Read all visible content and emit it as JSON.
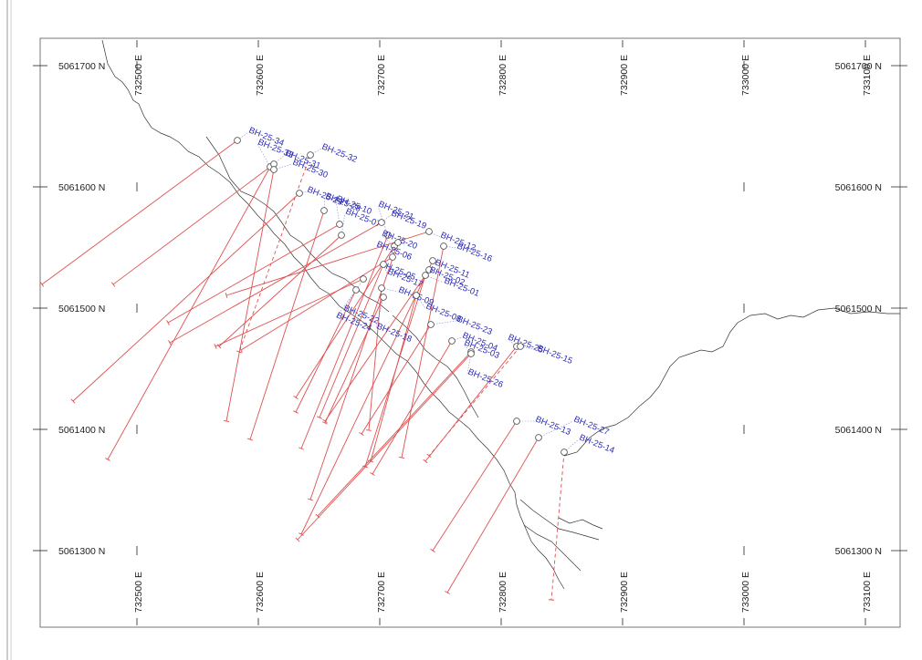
{
  "map": {
    "easting_labels": [
      "732500 E",
      "732600 E",
      "732700 E",
      "732800 E",
      "732900 E",
      "733000 E",
      "733100 E"
    ],
    "northing_labels": [
      "5061700 N",
      "5061600 N",
      "5061500 N",
      "5061400 N",
      "5061300 N"
    ],
    "colors": {
      "trace": "#e05050",
      "label": "#2a2ab8",
      "topo": "#333333"
    },
    "boreholes": [
      {
        "id": "BH-25-34",
        "label": "BH-25-34",
        "dashed": false
      },
      {
        "id": "BH-25-33",
        "label": "BH-25-33",
        "dashed": false
      },
      {
        "id": "BH-25-31",
        "label": "BH-25-31",
        "dashed": false
      },
      {
        "id": "BH-25-30",
        "label": "BH-25-30",
        "dashed": false
      },
      {
        "id": "BH-25-32",
        "label": "BH-25-32",
        "dashed": true
      },
      {
        "id": "BH-25-29",
        "label": "BH-25-29",
        "dashed": false
      },
      {
        "id": "BH-25-28",
        "label": "BH-25-28",
        "dashed": false
      },
      {
        "id": "BH-25-10",
        "label": "BH-25-10",
        "dashed": false
      },
      {
        "id": "BH-25-07",
        "label": "BH-25-07",
        "dashed": false
      },
      {
        "id": "BH-25-19",
        "label": "BH-25-19",
        "dashed": false
      },
      {
        "id": "BH-25-21",
        "label": "BH-25-21",
        "dashed": false
      },
      {
        "id": "BH-25-20",
        "label": "BH-25-20",
        "dashed": false
      },
      {
        "id": "BH-25-06",
        "label": "BH-25-06",
        "dashed": false
      },
      {
        "id": "BH-25-05",
        "label": "BH-25-05",
        "dashed": false
      },
      {
        "id": "BH-25-17",
        "label": "BH-25-17",
        "dashed": false
      },
      {
        "id": "BH-25-12",
        "label": "BH-25-12",
        "dashed": false
      },
      {
        "id": "BH-25-16",
        "label": "BH-25-16",
        "dashed": false
      },
      {
        "id": "BH-25-11",
        "label": "BH-25-11",
        "dashed": false
      },
      {
        "id": "BH-25-02",
        "label": "BH-25-02",
        "dashed": false
      },
      {
        "id": "BH-25-01",
        "label": "BH-25-01",
        "dashed": false
      },
      {
        "id": "BH-25-09",
        "label": "BH-25-09",
        "dashed": false
      },
      {
        "id": "BH-25-08",
        "label": "BH-25-08",
        "dashed": false
      },
      {
        "id": "BH-25-22",
        "label": "BH-25-22",
        "dashed": false
      },
      {
        "id": "BH-25-24",
        "label": "BH-25-24",
        "dashed": false
      },
      {
        "id": "BH-25-18",
        "label": "BH-25-18",
        "dashed": false
      },
      {
        "id": "BH-25-23",
        "label": "BH-25-23",
        "dashed": false
      },
      {
        "id": "BH-25-04",
        "label": "BH-25-04",
        "dashed": false
      },
      {
        "id": "BH-25-03",
        "label": "BH-25-03",
        "dashed": false
      },
      {
        "id": "BH-25-25",
        "label": "BH-25-25",
        "dashed": false
      },
      {
        "id": "BH-25-15",
        "label": "BH-25-15",
        "dashed": true
      },
      {
        "id": "BH-25-26",
        "label": "BH-25-26",
        "dashed": false
      },
      {
        "id": "BH-25-13",
        "label": "BH-25-13",
        "dashed": false
      },
      {
        "id": "BH-25-27",
        "label": "BH-25-27",
        "dashed": false
      },
      {
        "id": "BH-25-14",
        "label": "BH-25-14",
        "dashed": true
      }
    ]
  }
}
